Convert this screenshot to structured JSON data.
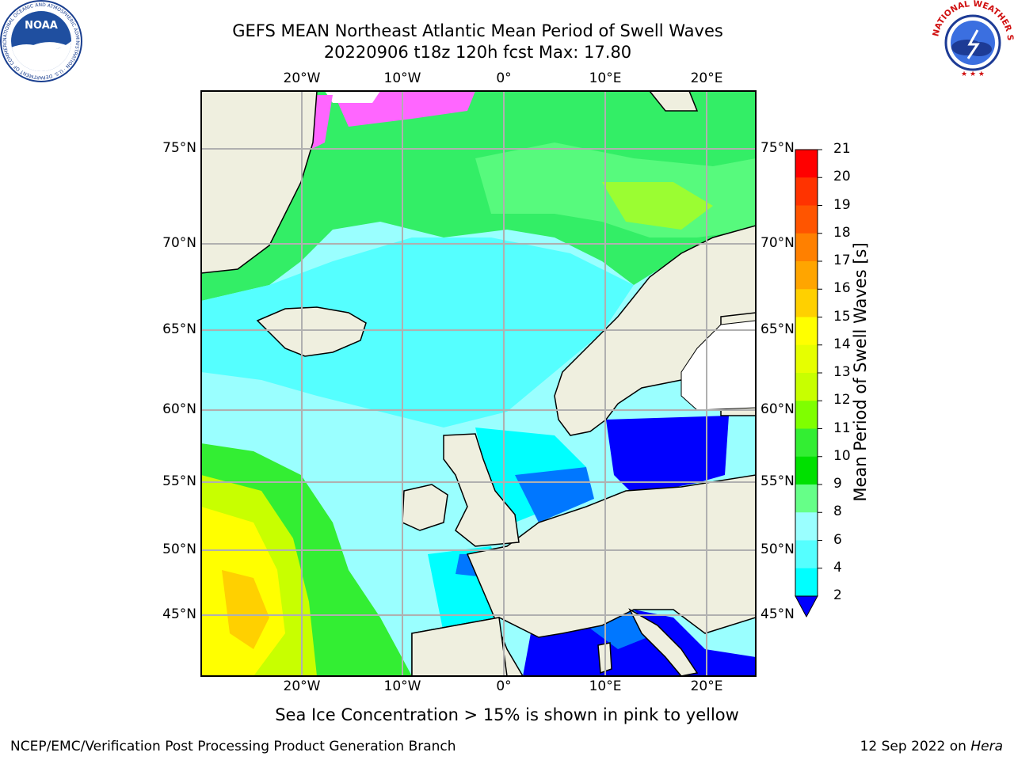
{
  "header": {
    "title_line1": "GEFS MEAN Northeast Atlantic Mean Period of Swell Waves",
    "title_line2": "20220906 t18z 120h fcst   Max: 17.80"
  },
  "logos": {
    "left": {
      "name": "NOAA",
      "ring_text": "NATIONAL OCEANIC AND ATMOSPHERIC ADMINISTRATION · U.S. DEPARTMENT OF COMMERCE",
      "icon": "noaa-logo"
    },
    "right": {
      "ring_text": "NATIONAL WEATHER SERVICE",
      "icon": "nws-logo"
    }
  },
  "map": {
    "longitude_labels": [
      "20°W",
      "10°W",
      "0°",
      "10°E",
      "20°E"
    ],
    "latitude_labels": [
      "75°N",
      "70°N",
      "65°N",
      "60°N",
      "55°N",
      "50°N",
      "45°N"
    ],
    "colors": {
      "land": "#efefdf",
      "coast": "#000000",
      "grid": "#b0b0b0"
    }
  },
  "colorbar": {
    "label": "Mean Period of Swell Waves [s]",
    "ticks": [
      "21",
      "20",
      "19",
      "18",
      "17",
      "16",
      "15",
      "14",
      "13",
      "12",
      "11",
      "10",
      "9",
      "8",
      "6",
      "4",
      "2"
    ],
    "colors": [
      "#ff0000",
      "#ff3300",
      "#ff5500",
      "#ff8000",
      "#ffa500",
      "#ffd000",
      "#ffff00",
      "#e6ff00",
      "#c8ff00",
      "#7fff00",
      "#33ee33",
      "#00e000",
      "#66ff88",
      "#9affff",
      "#55ffff",
      "#00ffff",
      "#0077ff",
      "#0000ff"
    ]
  },
  "notes": {
    "sea_ice": "Sea Ice Concentration > 15% is shown in pink to yellow"
  },
  "footer": {
    "left": "NCEP/EMC/Verification Post Processing Product Generation Branch",
    "right_date": "12 Sep 2022 on ",
    "right_host": "Hera"
  }
}
